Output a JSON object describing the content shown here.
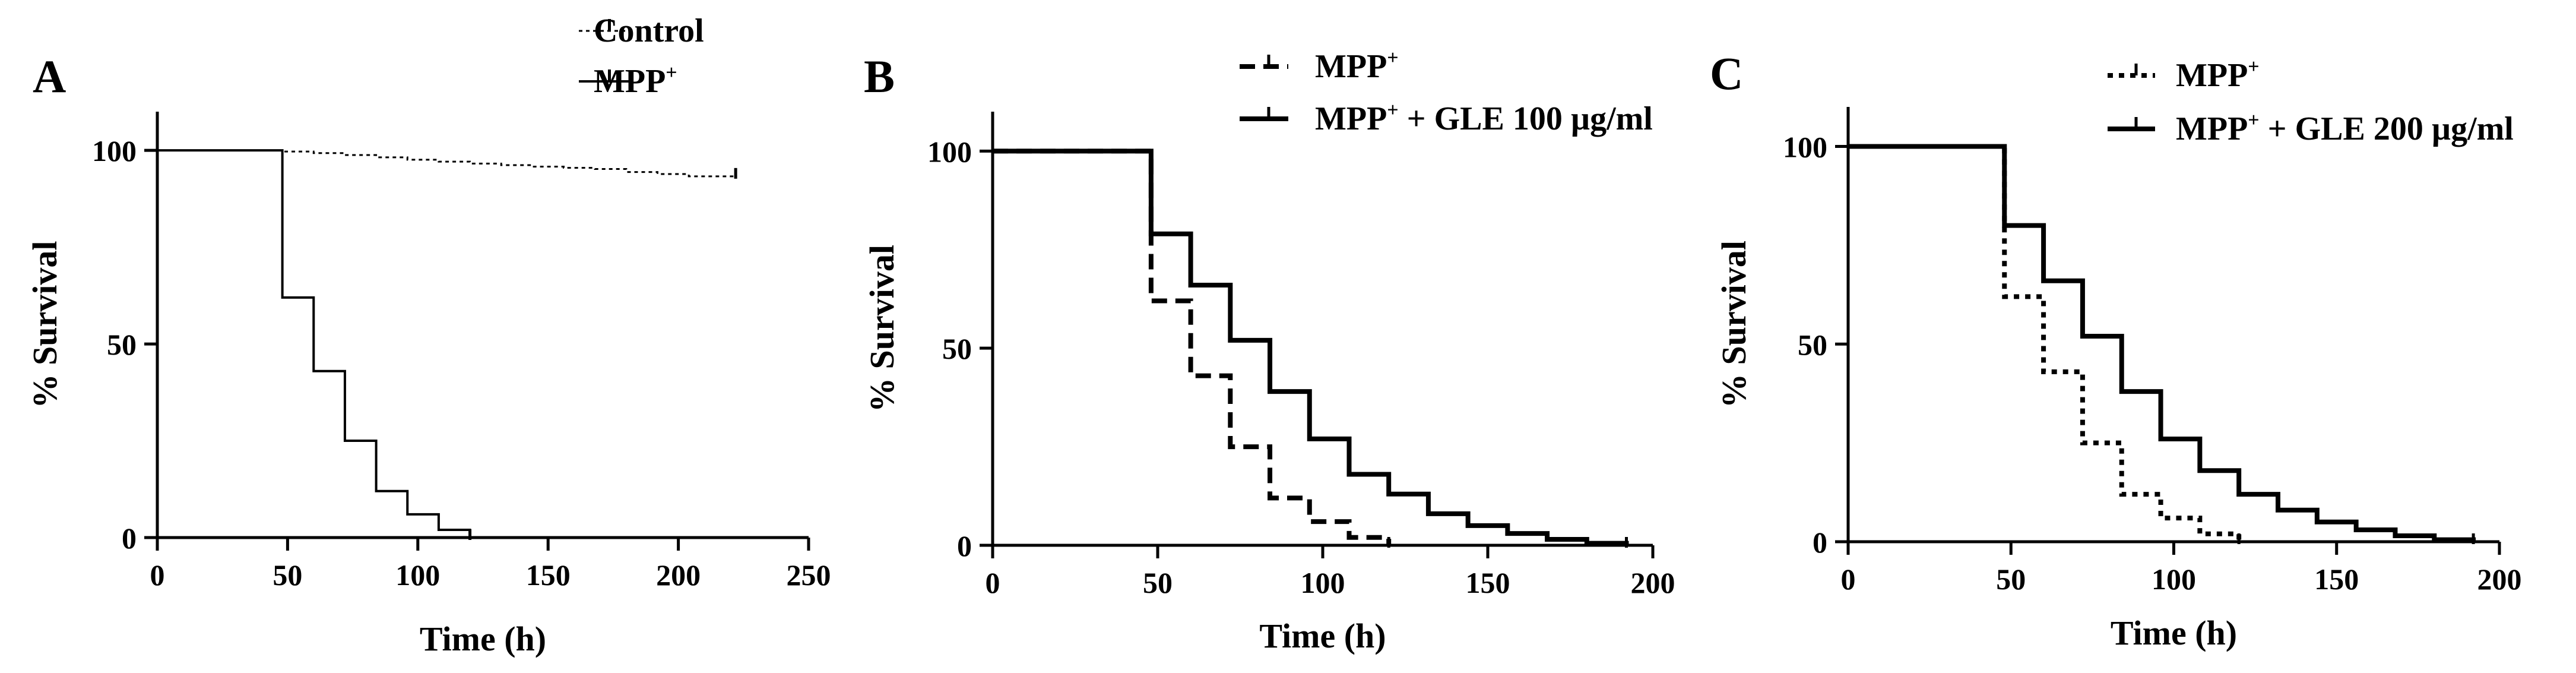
{
  "chart_data": [
    {
      "panel": "A",
      "type": "line",
      "subtype": "kaplan-meier step",
      "xlabel": "Time (h)",
      "ylabel": "% Survival",
      "xlim": [
        0,
        250
      ],
      "ylim": [
        0,
        110
      ],
      "xticks": [
        0,
        50,
        100,
        150,
        200,
        250
      ],
      "yticks": [
        0,
        50,
        100
      ],
      "legend_position": "top-right",
      "series": [
        {
          "name": "Control",
          "label_base": "Control",
          "label_sup": "",
          "style": "dotted-thin",
          "x": [
            0,
            48,
            60,
            72,
            84,
            96,
            108,
            120,
            132,
            144,
            156,
            168,
            180,
            192,
            204,
            216
          ],
          "y": [
            100,
            99.7,
            99.3,
            98.8,
            98.2,
            97.6,
            97.1,
            96.6,
            96.2,
            95.8,
            95.5,
            95.2,
            94.4,
            93.9,
            93.3,
            93.3
          ]
        },
        {
          "name": "MPP+",
          "label_base": "MPP",
          "label_sup": "+",
          "style": "solid-thin",
          "x": [
            0,
            48,
            60,
            72,
            84,
            96,
            108,
            120
          ],
          "y": [
            100,
            62,
            43,
            25,
            12,
            6,
            2,
            0
          ]
        }
      ]
    },
    {
      "panel": "B",
      "type": "line",
      "subtype": "kaplan-meier step",
      "xlabel": "Time (h)",
      "ylabel": "% Survival",
      "xlim": [
        0,
        200
      ],
      "ylim": [
        0,
        110
      ],
      "xticks": [
        0,
        50,
        100,
        150,
        200
      ],
      "yticks": [
        0,
        50,
        100
      ],
      "legend_position": "top-right",
      "series": [
        {
          "name": "MPP+",
          "label_base": "MPP",
          "label_sup": "+",
          "label_rest": "",
          "style": "dashed",
          "x": [
            0,
            48,
            60,
            72,
            84,
            96,
            108,
            120
          ],
          "y": [
            100,
            62,
            43,
            25,
            12,
            6,
            2,
            0
          ]
        },
        {
          "name": "MPP+ + GLE 100 µg/ml",
          "label_base": "MPP",
          "label_sup": "+",
          "label_rest": " + GLE 100 µg/ml",
          "style": "solid",
          "x": [
            0,
            48,
            60,
            72,
            84,
            96,
            108,
            120,
            132,
            144,
            156,
            168,
            180,
            192
          ],
          "y": [
            100,
            79,
            66,
            52,
            39,
            27,
            18,
            13,
            8,
            5,
            3,
            1.5,
            0.5,
            0
          ]
        }
      ]
    },
    {
      "panel": "C",
      "type": "line",
      "subtype": "kaplan-meier step",
      "xlabel": "Time (h)",
      "ylabel": "% Survival",
      "xlim": [
        0,
        200
      ],
      "ylim": [
        0,
        110
      ],
      "xticks": [
        0,
        50,
        100,
        150,
        200
      ],
      "yticks": [
        0,
        50,
        100
      ],
      "legend_position": "top-right",
      "series": [
        {
          "name": "MPP+",
          "label_base": "MPP",
          "label_sup": "+",
          "label_rest": "",
          "style": "dotted",
          "x": [
            0,
            48,
            60,
            72,
            84,
            96,
            108,
            120
          ],
          "y": [
            100,
            62,
            43,
            25,
            12,
            6,
            2,
            0
          ]
        },
        {
          "name": "MPP+ + GLE 200 µg/ml",
          "label_base": "MPP",
          "label_sup": "+",
          "label_rest": " + GLE 200 µg/ml",
          "style": "solid",
          "x": [
            0,
            48,
            60,
            72,
            84,
            96,
            108,
            120,
            132,
            144,
            156,
            168,
            180,
            192
          ],
          "y": [
            100,
            80,
            66,
            52,
            38,
            26,
            18,
            12,
            8,
            5,
            3,
            1.5,
            0.5,
            0
          ]
        }
      ]
    }
  ]
}
